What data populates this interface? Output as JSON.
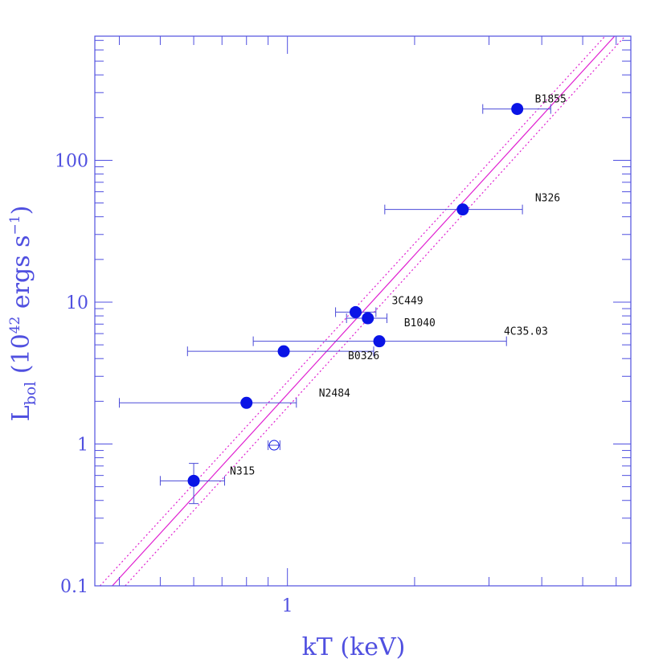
{
  "chart_data": {
    "type": "scatter",
    "xlabel_main": "kT",
    "xlabel_unit": "(keV)",
    "ylabel_main": "L",
    "ylabel_sub": "bol",
    "ylabel_rest1": " (10",
    "ylabel_exp1": "42",
    "ylabel_rest2": " ergs s",
    "ylabel_exp2": "−1",
    "ylabel_rest3": ")",
    "x_scale": "log",
    "y_scale": "log",
    "xlim": [
      0.35,
      6.5
    ],
    "ylim": [
      0.1,
      750
    ],
    "x_ticks": [
      {
        "value": 1,
        "label": "1"
      }
    ],
    "y_ticks": [
      {
        "value": 0.1,
        "label": "0.1"
      },
      {
        "value": 1,
        "label": "1"
      },
      {
        "value": 10,
        "label": "10"
      },
      {
        "value": 100,
        "label": "100"
      }
    ],
    "points": [
      {
        "label": "B1855",
        "x": 3.5,
        "y": 230,
        "xerr": [
          2.9,
          4.2
        ],
        "yerr": null,
        "filled": true
      },
      {
        "label": "N326",
        "x": 2.6,
        "y": 45,
        "xerr": [
          1.7,
          3.6
        ],
        "yerr": null,
        "filled": true
      },
      {
        "label": "3C449",
        "x": 1.45,
        "y": 8.5,
        "xerr": [
          1.3,
          1.62
        ],
        "yerr": null,
        "filled": true
      },
      {
        "label": "B1040",
        "x": 1.55,
        "y": 7.7,
        "xerr": [
          1.38,
          1.72
        ],
        "yerr": null,
        "filled": true
      },
      {
        "label": "4C35.03",
        "x": 1.65,
        "y": 5.3,
        "xerr": [
          0.83,
          3.3
        ],
        "yerr": null,
        "filled": true
      },
      {
        "label": "B0326",
        "x": 0.98,
        "y": 4.5,
        "xerr": [
          0.58,
          1.6
        ],
        "yerr": null,
        "filled": true
      },
      {
        "label": "N2484",
        "x": 0.8,
        "y": 1.95,
        "xerr": [
          0.4,
          1.05
        ],
        "yerr": null,
        "filled": true
      },
      {
        "label": "",
        "x": 0.93,
        "y": 0.98,
        "xerr": [
          0.9,
          0.96
        ],
        "yerr": null,
        "filled": false
      },
      {
        "label": "N315",
        "x": 0.6,
        "y": 0.55,
        "xerr": [
          0.5,
          0.71
        ],
        "yerr": [
          0.38,
          0.73
        ],
        "filled": true
      }
    ],
    "fit_line": {
      "x1": 0.385,
      "y1": 0.1,
      "x2": 5.95,
      "y2": 750
    },
    "fit_bounds": [
      {
        "x1": 0.36,
        "y1": 0.1,
        "x2": 5.65,
        "y2": 750
      },
      {
        "x1": 0.413,
        "y1": 0.1,
        "x2": 6.3,
        "y2": 750
      }
    ],
    "colors": {
      "axis": "#5050e0",
      "points": "#0a14e6",
      "errorbars": "#4a4ad8",
      "fit": "#e020d0",
      "labels": "#111111"
    }
  }
}
